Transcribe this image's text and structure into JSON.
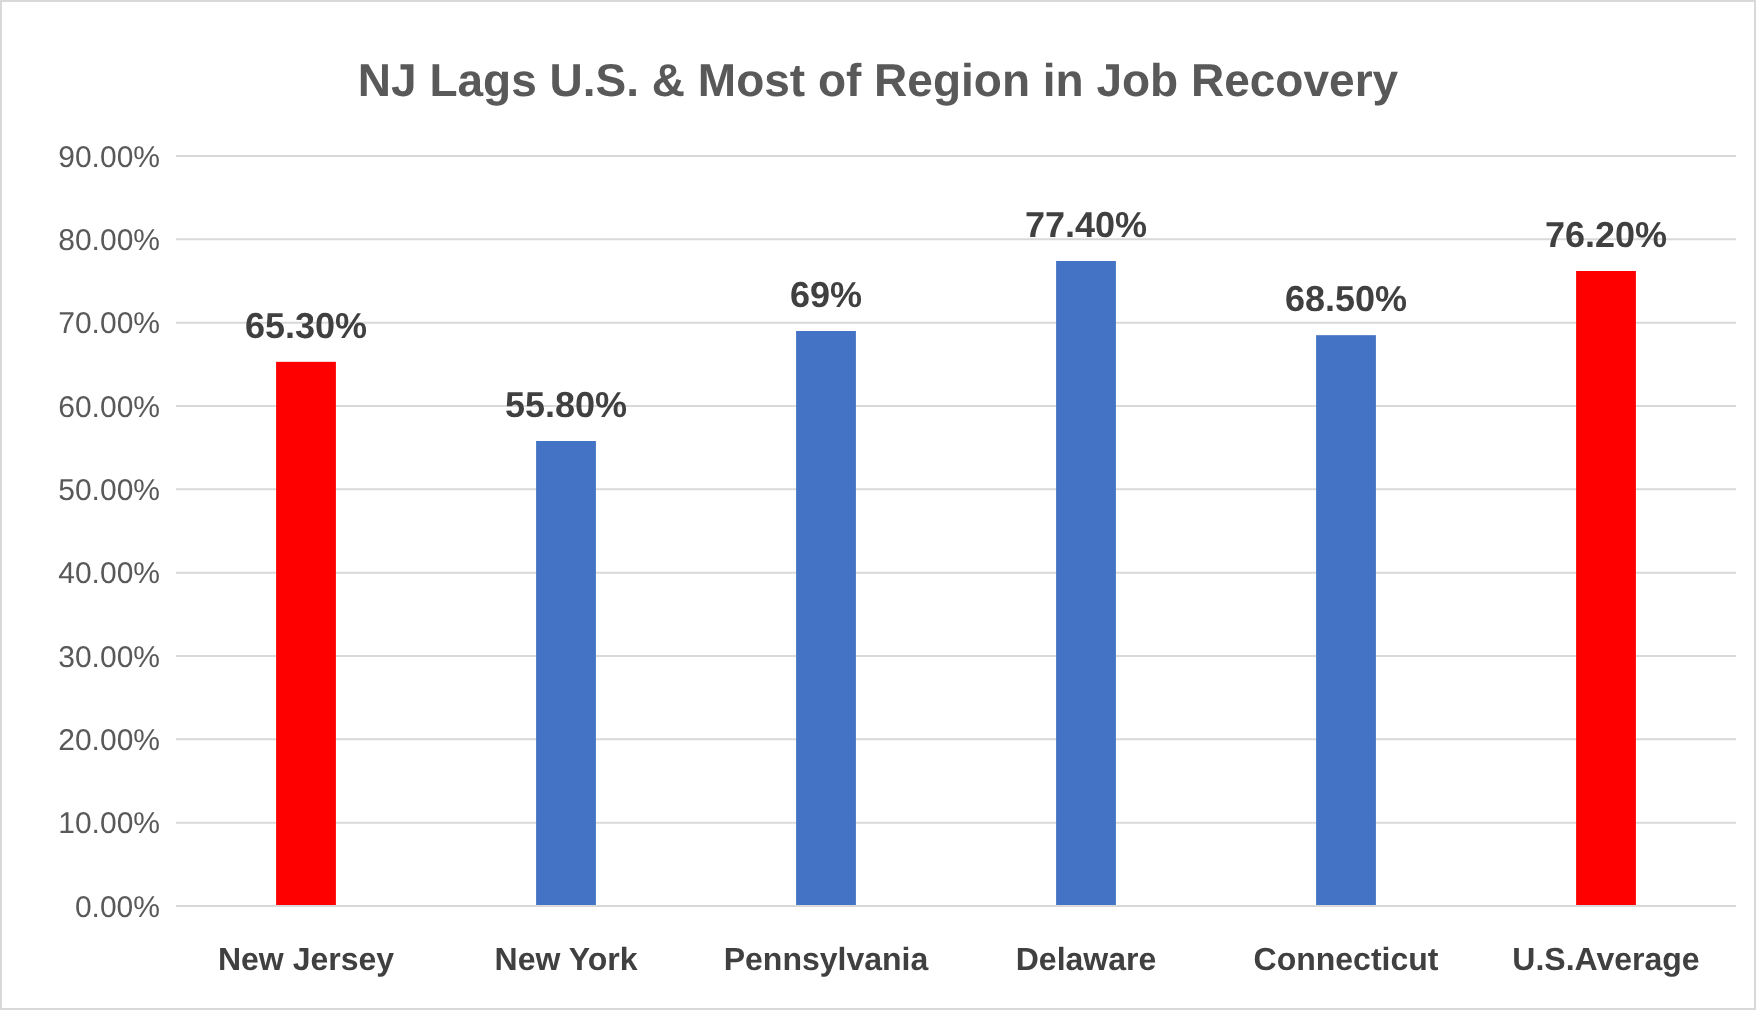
{
  "chart_data": {
    "type": "bar",
    "title": "NJ Lags U.S. & Most of Region in Job Recovery",
    "categories": [
      "New Jersey",
      "New York",
      "Pennsylvania",
      "Delaware",
      "Connecticut",
      "U.S.Average"
    ],
    "values": [
      65.3,
      55.8,
      69,
      77.4,
      68.5,
      76.2
    ],
    "colors": [
      "#ff0000",
      "#4472c4",
      "#4472c4",
      "#4472c4",
      "#4472c4",
      "#ff0000"
    ],
    "value_labels": [
      "65.30%",
      "55.80%",
      "69%",
      "77.40%",
      "68.50%",
      "76.20%"
    ],
    "ylim": [
      0,
      90
    ],
    "yticks": [
      {
        "value": 0,
        "label": "0.00%"
      },
      {
        "value": 10,
        "label": "10.00%"
      },
      {
        "value": 20,
        "label": "20.00%"
      },
      {
        "value": 30,
        "label": "30.00%"
      },
      {
        "value": 40,
        "label": "40.00%"
      },
      {
        "value": 50,
        "label": "50.00%"
      },
      {
        "value": 60,
        "label": "60.00%"
      },
      {
        "value": 70,
        "label": "70.00%"
      },
      {
        "value": 80,
        "label": "80.00%"
      },
      {
        "value": 90,
        "label": "90.00%"
      }
    ],
    "grid": "y"
  }
}
